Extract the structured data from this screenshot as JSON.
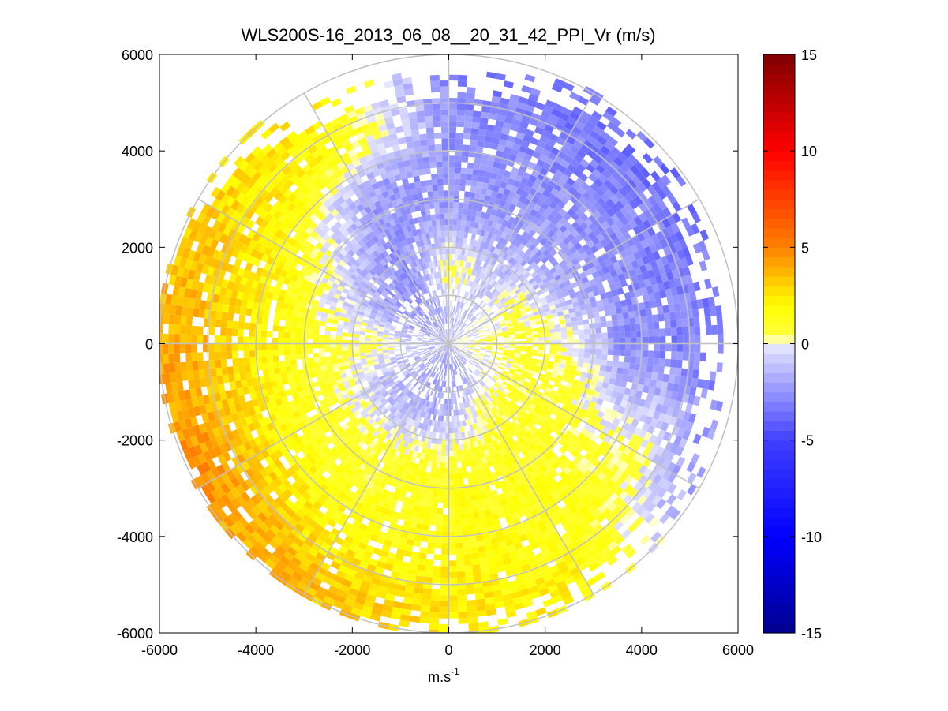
{
  "chart_data": {
    "type": "heatmap",
    "subtype": "polar PPI scan",
    "title": "WLS200S-16_2013_06_08__20_31_42_PPI_Vr (m/s)",
    "xlabel": "m.s",
    "xlabel_superscript": "-1",
    "ylabel": "",
    "xlim": [
      -6000,
      6000
    ],
    "ylim": [
      -6000,
      6000
    ],
    "x_ticks": [
      {
        "value": -6000,
        "label": "-6000"
      },
      {
        "value": -4000,
        "label": "-4000"
      },
      {
        "value": -2000,
        "label": "-2000"
      },
      {
        "value": 0,
        "label": "0"
      },
      {
        "value": 2000,
        "label": "2000"
      },
      {
        "value": 4000,
        "label": "4000"
      },
      {
        "value": 6000,
        "label": "6000"
      }
    ],
    "y_ticks": [
      {
        "value": 6000,
        "label": "6000"
      },
      {
        "value": 4000,
        "label": "4000"
      },
      {
        "value": 2000,
        "label": "2000"
      },
      {
        "value": 0,
        "label": "0"
      },
      {
        "value": -2000,
        "label": "-2000"
      },
      {
        "value": -4000,
        "label": "-4000"
      },
      {
        "value": -6000,
        "label": "-6000"
      }
    ],
    "polar_grid": {
      "ring_radii": [
        1000,
        2000,
        3000,
        4000,
        5000,
        6000
      ],
      "spoke_angles_deg": [
        0,
        30,
        60,
        90,
        120,
        150,
        180,
        210,
        240,
        270,
        300,
        330
      ],
      "grid_color": "#c0c0c0"
    },
    "max_range": 6000,
    "colorbar": {
      "range": [
        -15,
        15
      ],
      "ticks": [
        {
          "value": 15,
          "label": "15"
        },
        {
          "value": 10,
          "label": "10"
        },
        {
          "value": 5,
          "label": "5"
        },
        {
          "value": 0,
          "label": "0"
        },
        {
          "value": -5,
          "label": "-5"
        },
        {
          "value": -10,
          "label": "-10"
        },
        {
          "value": -15,
          "label": "-15"
        }
      ],
      "colors": {
        "min": "#00008f",
        "neg_mid": "#4040ff",
        "zero_low": "#e8e8ff",
        "zero_high": "#ffffd0",
        "pos_low": "#ffff00",
        "pos_mid": "#ff8000",
        "pos_high": "#ff0000",
        "max": "#7f0000"
      }
    },
    "velocity_field": {
      "description": "radial velocity in m/s by azimuth sector and range",
      "sector_azimuth_deg": [
        0,
        30,
        60,
        90,
        120,
        150,
        180,
        210,
        240,
        270,
        300,
        330
      ],
      "outer_range_m": [
        5000,
        5500,
        5300,
        5100,
        5400,
        5500,
        5700,
        6000,
        5800,
        6000,
        5800,
        5200
      ],
      "mean_velocity_by_range": [
        {
          "range_m": 500,
          "values": [
            -1.5,
            -1.0,
            -0.5,
            0.3,
            -0.5,
            -2.0,
            -2.5,
            -2.0,
            -1.5,
            -1.0,
            -2.0,
            -2.0
          ]
        },
        {
          "range_m": 1500,
          "values": [
            0.8,
            -1.0,
            0.5,
            0.8,
            0.8,
            0.8,
            -1.5,
            -1.5,
            -1.2,
            0.5,
            -2.0,
            -2.5
          ]
        },
        {
          "range_m": 2500,
          "values": [
            -2.0,
            -2.0,
            -2.0,
            0.5,
            1.2,
            1.2,
            1.2,
            0.8,
            0.8,
            0.8,
            -0.5,
            -2.5
          ]
        },
        {
          "range_m": 3500,
          "values": [
            -2.5,
            -2.5,
            -2.5,
            -2.5,
            0.5,
            1.5,
            1.5,
            1.2,
            1.5,
            2.0,
            1.5,
            -2.0
          ]
        },
        {
          "range_m": 4500,
          "values": [
            -2.5,
            -3.0,
            -3.0,
            -3.0,
            0.5,
            1.5,
            2.0,
            2.0,
            3.0,
            3.0,
            2.5,
            1.5
          ]
        },
        {
          "range_m": 5500,
          "values": [
            -3.0,
            -3.5,
            -3.5,
            -3.0,
            -2.0,
            2.0,
            2.5,
            3.5,
            4.5,
            4.0,
            3.0,
            2.0
          ]
        }
      ]
    }
  }
}
